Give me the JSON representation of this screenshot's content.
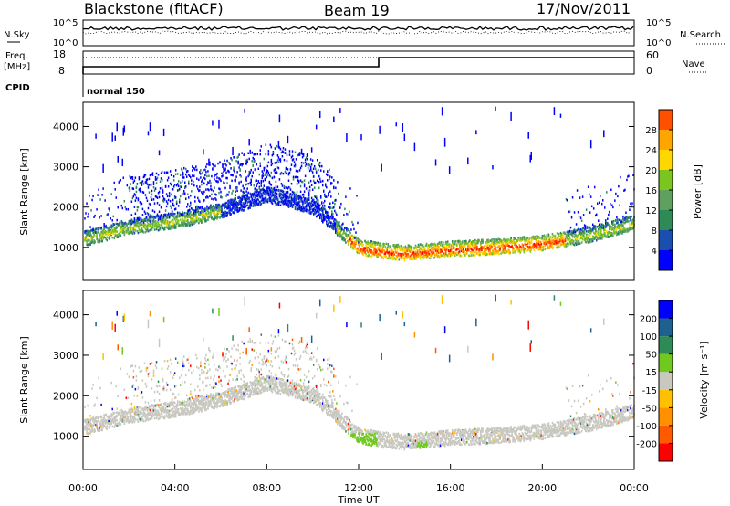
{
  "header": {
    "station": "Blackstone (fitACF)",
    "beam": "Beam 19",
    "date": "17/Nov/2011"
  },
  "noise_panel": {
    "left_label": "N.Sky",
    "left_ticks": [
      "10^5",
      "10^0"
    ],
    "right_ticks": [
      "10^5",
      "10^0"
    ],
    "right_label": "N.Search"
  },
  "freq_panel": {
    "left_label_1": "Freq.",
    "left_label_2": "[MHz]",
    "left_ticks": [
      "18",
      "8"
    ],
    "right_ticks": [
      "60",
      "0"
    ],
    "right_label": "Nave",
    "cpid_label": "CPID",
    "cpid_value": "normal 150"
  },
  "colors": {
    "power": [
      "#0000ff",
      "#1a4fb0",
      "#2e8b57",
      "#5fa05f",
      "#7cc41f",
      "#ffd700",
      "#ffa500",
      "#ff5000",
      "#ff0000"
    ],
    "velocity": [
      "#ff0000",
      "#ff5a00",
      "#ff9000",
      "#ffc000",
      "#c8c8c0",
      "#70c820",
      "#2e8b57",
      "#1f6090",
      "#0000ff"
    ]
  },
  "chart_data": [
    {
      "type": "heatmap",
      "name": "power",
      "ylabel": "Slant Range [km]",
      "yticks": [
        1000,
        2000,
        3000,
        4000
      ],
      "ylim": [
        180,
        4600
      ],
      "xlim": [
        0,
        24
      ],
      "colorbar_label": "Power [dB]",
      "colorbar_ticks": [
        4,
        8,
        12,
        16,
        20,
        24,
        28
      ],
      "colorbar_range": [
        0,
        32
      ],
      "band_profile": [
        {
          "t": 0,
          "r": 1200
        },
        {
          "t": 2,
          "r": 1500
        },
        {
          "t": 4,
          "r": 1650
        },
        {
          "t": 6,
          "r": 1900
        },
        {
          "t": 8,
          "r": 2300
        },
        {
          "t": 10,
          "r": 2000
        },
        {
          "t": 11,
          "r": 1500
        },
        {
          "t": 12,
          "r": 1000
        },
        {
          "t": 13,
          "r": 900
        },
        {
          "t": 14,
          "r": 850
        },
        {
          "t": 16,
          "r": 950
        },
        {
          "t": 18,
          "r": 1000
        },
        {
          "t": 20,
          "r": 1100
        },
        {
          "t": 22,
          "r": 1300
        },
        {
          "t": 24,
          "r": 1600
        }
      ]
    },
    {
      "type": "heatmap",
      "name": "velocity",
      "ylabel": "Slant Range [km]",
      "yticks": [
        1000,
        2000,
        3000,
        4000
      ],
      "ylim": [
        180,
        4600
      ],
      "xlim": [
        0,
        24
      ],
      "xticks": [
        "00:00",
        "04:00",
        "08:00",
        "12:00",
        "16:00",
        "20:00",
        "00:00"
      ],
      "xlabel": "Time UT",
      "colorbar_label": "Velocity [m s⁻¹]",
      "colorbar_ticks": [
        "200",
        "100",
        "50",
        "15",
        "-15",
        "-50",
        "-100",
        "-200"
      ]
    }
  ]
}
